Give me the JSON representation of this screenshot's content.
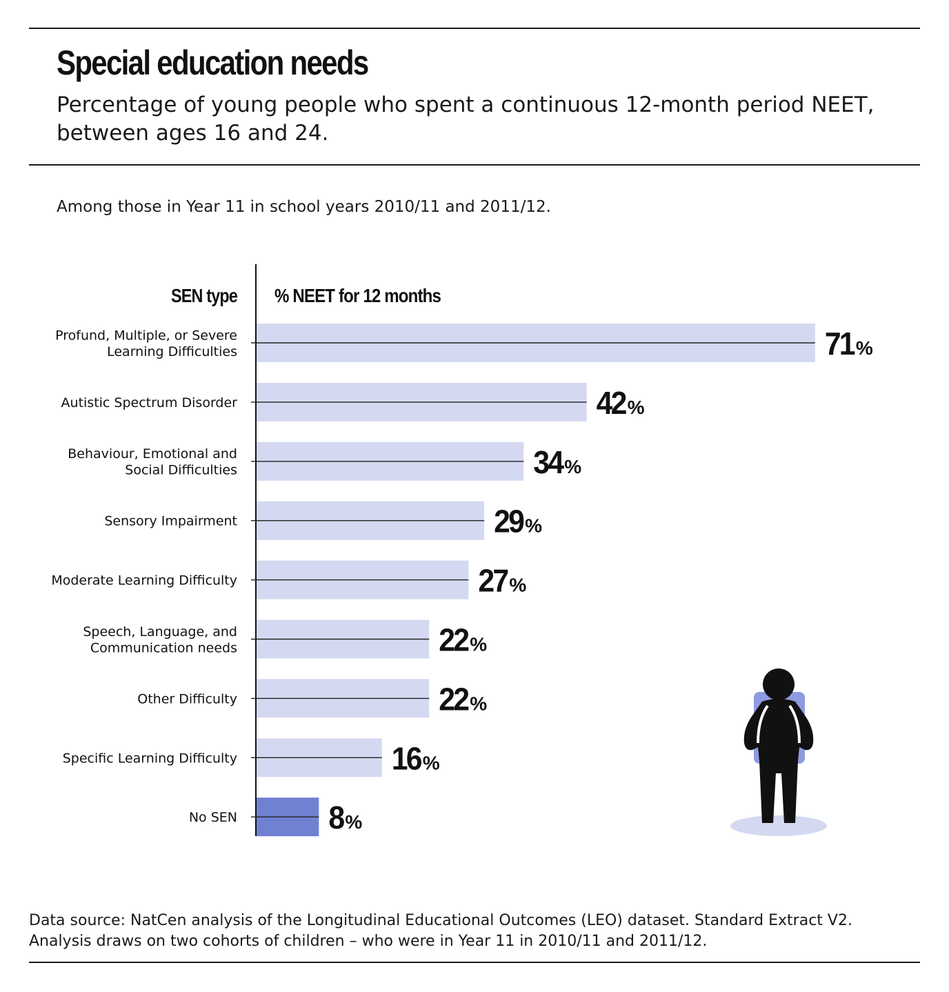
{
  "header": {
    "title": "Special education needs",
    "subtitle": "Percentage of young people who spent a continuous 12-month period NEET, between ages 16 and 24."
  },
  "note": "Among those in Year 11 in school years 2010/11 and 2011/12.",
  "footer": {
    "source": "Data source: NatCen analysis of the Longitudinal Educational Outcomes (LEO) dataset. Standard Extract V2. Analysis draws on two cohorts of children – who were in Year 11 in 2010/11 and 2011/12."
  },
  "colors": {
    "bar": "#d4d9f1",
    "highlight_bar": "#7081d2",
    "text": "#111111",
    "figure_pack": "#8f9be0",
    "figure_shadow": "#d4d9f1"
  },
  "chart_data": {
    "type": "bar",
    "orientation": "horizontal",
    "category_header": "SEN type",
    "value_header": "% NEET for 12 months",
    "categories": [
      [
        "Profund, Multiple, or Severe",
        "Learning Difficulties"
      ],
      [
        "Autistic Spectrum Disorder"
      ],
      [
        "Behaviour, Emotional and",
        "Social Difficulties"
      ],
      [
        "Sensory Impairment"
      ],
      [
        "Moderate Learning Difficulty"
      ],
      [
        "Speech, Language, and",
        "Communication needs"
      ],
      [
        "Other Difficulty"
      ],
      [
        "Specific Learning Difficulty"
      ],
      [
        "No SEN"
      ]
    ],
    "values": [
      71,
      42,
      34,
      29,
      27,
      22,
      22,
      16,
      8
    ],
    "unit": "%",
    "highlighted": [
      "No SEN"
    ],
    "grid": false,
    "legend": "none"
  }
}
